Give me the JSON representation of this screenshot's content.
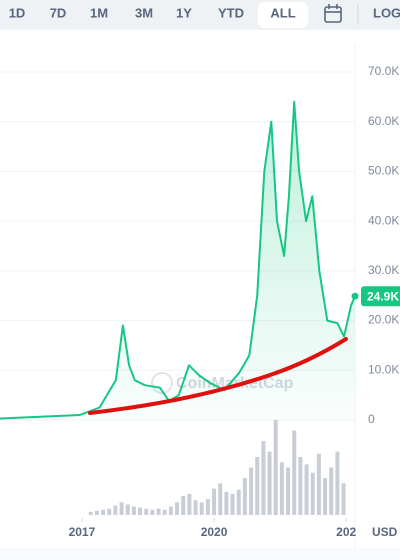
{
  "tabs": [
    "1D",
    "7D",
    "1M",
    "3M",
    "1Y",
    "YTD",
    "ALL"
  ],
  "selected_tab": "ALL",
  "log_button": "LOG",
  "chart_data": {
    "type": "area",
    "watermark": "CoinMarketCap",
    "currency": "USD",
    "xlim": [
      2015.14,
      2023.2
    ],
    "xticks": [
      2017,
      2020,
      {
        "value": 2023,
        "label": "202"
      }
    ],
    "ylim": [
      0,
      70000
    ],
    "yticks": [
      {
        "value": 0,
        "label": "0"
      },
      {
        "value": 10000,
        "label": "10.0K"
      },
      {
        "value": 20000,
        "label": "20.0K"
      },
      {
        "value": 30000,
        "label": "30.0K"
      },
      {
        "value": 40000,
        "label": "40.0K"
      },
      {
        "value": 50000,
        "label": "50.0K"
      },
      {
        "value": 60000,
        "label": "60.0K"
      },
      {
        "value": 70000,
        "label": "70.0K"
      }
    ],
    "grid": true,
    "series": [
      {
        "color": "#16c784",
        "x": [
          2015.14,
          2016.95,
          2017.4,
          2017.77,
          2017.93,
          2018.07,
          2018.2,
          2018.43,
          2018.77,
          2018.98,
          2019.2,
          2019.43,
          2019.66,
          2019.9,
          2020.23,
          2020.57,
          2020.8,
          2020.98,
          2021.14,
          2021.3,
          2021.43,
          2021.59,
          2021.7,
          2021.82,
          2021.93,
          2022.09,
          2022.23,
          2022.39,
          2022.57,
          2022.8,
          2022.95,
          2023.11,
          2023.2
        ],
        "values": [
          300,
          1000,
          2500,
          8000,
          19000,
          11000,
          8000,
          7000,
          6500,
          3800,
          5000,
          11000,
          9000,
          7500,
          6000,
          9500,
          13000,
          25000,
          50000,
          60000,
          40000,
          33000,
          45000,
          64000,
          50000,
          40000,
          45000,
          30000,
          20000,
          19500,
          16800,
          23000,
          24900
        ]
      }
    ],
    "current_price": {
      "value": 24900,
      "label": "24.9K"
    },
    "volume": {
      "color": "#c9ced6",
      "x": [
        2017.2,
        2017.34,
        2017.48,
        2017.62,
        2017.76,
        2017.9,
        2018.04,
        2018.18,
        2018.32,
        2018.46,
        2018.6,
        2018.74,
        2018.88,
        2019.02,
        2019.16,
        2019.3,
        2019.44,
        2019.58,
        2019.72,
        2019.86,
        2020.0,
        2020.14,
        2020.28,
        2020.42,
        2020.56,
        2020.7,
        2020.84,
        2020.98,
        2021.12,
        2021.26,
        2021.4,
        2021.54,
        2021.68,
        2021.82,
        2021.96,
        2022.1,
        2022.24,
        2022.38,
        2022.52,
        2022.66,
        2022.8,
        2022.94
      ],
      "values": [
        3,
        4,
        5,
        6,
        9,
        12,
        10,
        8,
        7,
        6,
        5,
        6,
        5,
        8,
        12,
        18,
        20,
        14,
        12,
        15,
        25,
        30,
        22,
        20,
        24,
        35,
        45,
        55,
        70,
        60,
        90,
        50,
        45,
        80,
        55,
        48,
        40,
        58,
        35,
        45,
        60,
        30
      ]
    }
  }
}
